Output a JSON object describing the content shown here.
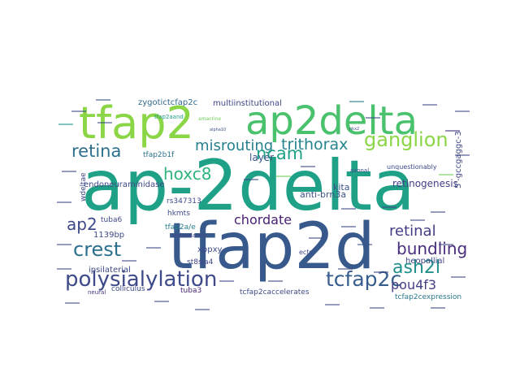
{
  "words": [
    {
      "text": "ap-2delta",
      "color": "#1fa187"
    },
    {
      "text": "tfap2d",
      "color": "#38598c"
    },
    {
      "text": "tfap2",
      "color": "#8bd646"
    },
    {
      "text": "ap2delta",
      "color": "#4ac16d"
    },
    {
      "text": "ganglion",
      "color": "#8bd646"
    },
    {
      "text": "misrouting",
      "color": "#26818e"
    },
    {
      "text": "trithorax",
      "color": "#25848e"
    },
    {
      "text": "retina",
      "color": "#2d708e"
    },
    {
      "text": "ncam",
      "color": "#1fa187"
    },
    {
      "text": "hoxc8",
      "color": "#2fb47c"
    },
    {
      "text": "polysialylation",
      "color": "#3e4a89"
    },
    {
      "text": "tcfap2c",
      "color": "#365d8d"
    },
    {
      "text": "crest",
      "color": "#2d708e"
    },
    {
      "text": "ap2",
      "color": "#3e4a89"
    },
    {
      "text": "chordate",
      "color": "#482173"
    },
    {
      "text": "ash2l",
      "color": "#21918c"
    },
    {
      "text": "pou4f3",
      "color": "#433e85"
    },
    {
      "text": "bundling",
      "color": "#472d7b"
    },
    {
      "text": "retinal",
      "color": "#433e85"
    },
    {
      "text": "zygotictcfap2c",
      "color": "#31688e"
    },
    {
      "text": "multiinstitutional",
      "color": "#3f4788"
    },
    {
      "text": "tfap2b1f",
      "color": "#2c728e"
    },
    {
      "text": "endoneuraminidase",
      "color": "#3f4788"
    },
    {
      "text": "wdeltae",
      "color": "#3f4788"
    },
    {
      "text": "tfap2aand",
      "color": "#1f9e89"
    },
    {
      "text": "amacrine",
      "color": "#6ece58"
    },
    {
      "text": "layer",
      "color": "#3b528b"
    },
    {
      "text": "retinogenesis",
      "color": "#424086"
    },
    {
      "text": "kita",
      "color": "#3b528b"
    },
    {
      "text": "anti-brn3a",
      "color": "#3b528b"
    },
    {
      "text": "5'-gccgaggc-3",
      "color": "#3e4a89"
    },
    {
      "text": "rs347313",
      "color": "#3e4a89"
    },
    {
      "text": "hkmts",
      "color": "#3e4a89"
    },
    {
      "text": "tfap2a/e",
      "color": "#287d8e"
    },
    {
      "text": "tuba6",
      "color": "#3e4a89"
    },
    {
      "text": "1139bp",
      "color": "#3e4a89"
    },
    {
      "text": "xppxy",
      "color": "#3e4a89"
    },
    {
      "text": "st8sia4",
      "color": "#3f4788"
    },
    {
      "text": "ipsilaterial",
      "color": "#3e4a89"
    },
    {
      "text": "heopallial",
      "color": "#414487"
    },
    {
      "text": "colliculus",
      "color": "#3e4a89"
    },
    {
      "text": "tuba3",
      "color": "#482475"
    },
    {
      "text": "tcfap2caccelerates",
      "color": "#3e4a89"
    },
    {
      "text": "tcfap2cexpression",
      "color": "#2a788e"
    },
    {
      "text": "ects",
      "color": "#3e4a89"
    },
    {
      "text": "neural",
      "color": "#46327e"
    },
    {
      "text": "redundantly",
      "color": "#3f4788"
    },
    {
      "text": "unquestionably",
      "color": "#3e4a89"
    },
    {
      "text": "axonal",
      "color": "#3e4a89"
    },
    {
      "text": "alpha10",
      "color": "#3b528b"
    },
    {
      "text": "nkx2",
      "color": "#3e4a89"
    }
  ]
}
